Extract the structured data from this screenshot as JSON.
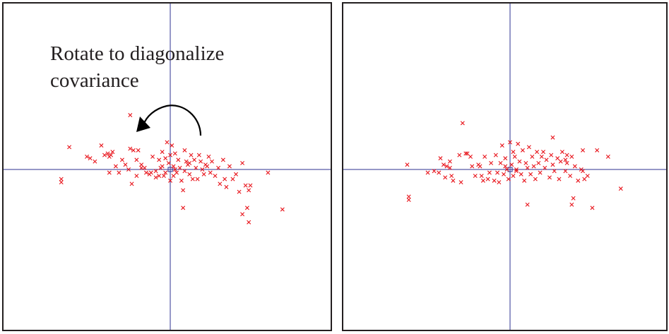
{
  "caption": {
    "line1": "Rotate to diagonalize",
    "line2": "covariance"
  },
  "colors": {
    "frame": "#231f20",
    "axis": "#2e3192",
    "marker": "#e8141b",
    "arrow": "#000000"
  },
  "chart_data": [
    {
      "type": "scatter",
      "panel": "left",
      "marker": "x",
      "xlim": [
        -10,
        10
      ],
      "ylim": [
        -10,
        10
      ],
      "grid": false,
      "points": [
        [
          -2.5,
          3.4
        ],
        [
          -6.3,
          1.4
        ],
        [
          -6.8,
          -0.6
        ],
        [
          -6.8,
          -0.8
        ],
        [
          -5.2,
          0.8
        ],
        [
          -5.0,
          0.7
        ],
        [
          -4.7,
          0.5
        ],
        [
          -4.3,
          1.5
        ],
        [
          -4.1,
          0.9
        ],
        [
          -3.9,
          1.0
        ],
        [
          -3.8,
          0.8
        ],
        [
          -3.7,
          0.9
        ],
        [
          -3.6,
          1.1
        ],
        [
          -3.4,
          0.2
        ],
        [
          -3.8,
          -0.2
        ],
        [
          -3.2,
          -0.2
        ],
        [
          -3.0,
          0.6
        ],
        [
          -2.8,
          0.3
        ],
        [
          -2.5,
          1.3
        ],
        [
          -2.3,
          1.2
        ],
        [
          -2.4,
          -0.9
        ],
        [
          -2.1,
          -0.4
        ],
        [
          -2.1,
          0.6
        ],
        [
          -2.0,
          1.2
        ],
        [
          -1.8,
          0.3
        ],
        [
          -1.6,
          0.1
        ],
        [
          -1.5,
          -0.2
        ],
        [
          -1.3,
          -0.3
        ],
        [
          -1.2,
          -0.2
        ],
        [
          -1.1,
          0.8
        ],
        [
          -0.9,
          -0.5
        ],
        [
          -0.9,
          -0.1
        ],
        [
          -0.7,
          0.6
        ],
        [
          -0.7,
          -0.4
        ],
        [
          -0.6,
          0.1
        ],
        [
          -0.5,
          1.1
        ],
        [
          -0.4,
          -0.4
        ],
        [
          -0.3,
          0.7
        ],
        [
          -0.3,
          -0.2
        ],
        [
          -0.2,
          1.7
        ],
        [
          -0.1,
          0.4
        ],
        [
          0.0,
          0.9
        ],
        [
          0.0,
          -0.7
        ],
        [
          0.1,
          1.5
        ],
        [
          0.2,
          0.2
        ],
        [
          0.2,
          -0.4
        ],
        [
          0.3,
          1.0
        ],
        [
          0.4,
          -0.2
        ],
        [
          0.5,
          0.6
        ],
        [
          0.6,
          0.1
        ],
        [
          0.7,
          -0.7
        ],
        [
          0.8,
          -1.3
        ],
        [
          0.9,
          1.2
        ],
        [
          0.9,
          -0.1
        ],
        [
          1.0,
          0.5
        ],
        [
          1.1,
          0.3
        ],
        [
          1.2,
          -0.3
        ],
        [
          1.3,
          0.9
        ],
        [
          1.4,
          -0.6
        ],
        [
          1.5,
          0.6
        ],
        [
          1.6,
          0.1
        ],
        [
          1.7,
          -0.6
        ],
        [
          1.8,
          0.9
        ],
        [
          1.9,
          0.5
        ],
        [
          2.0,
          0.0
        ],
        [
          2.1,
          -0.3
        ],
        [
          2.2,
          0.3
        ],
        [
          2.4,
          0.8
        ],
        [
          2.5,
          -0.2
        ],
        [
          2.6,
          0.5
        ],
        [
          2.8,
          -0.4
        ],
        [
          3.0,
          0.1
        ],
        [
          3.1,
          -0.9
        ],
        [
          3.3,
          0.6
        ],
        [
          3.4,
          -0.6
        ],
        [
          3.5,
          -1.1
        ],
        [
          3.7,
          0.2
        ],
        [
          3.9,
          -0.6
        ],
        [
          4.1,
          -0.3
        ],
        [
          4.3,
          -1.4
        ],
        [
          4.5,
          0.4
        ],
        [
          4.7,
          -1.0
        ],
        [
          4.9,
          -1.3
        ],
        [
          5.0,
          -1.0
        ],
        [
          4.5,
          -2.8
        ],
        [
          4.8,
          -2.4
        ],
        [
          0.8,
          -2.4
        ],
        [
          4.9,
          -3.3
        ],
        [
          6.1,
          -0.2
        ],
        [
          7.0,
          -2.5
        ],
        [
          -1.8,
          0.1
        ],
        [
          -0.5,
          0.2
        ],
        [
          0.3,
          0.0
        ],
        [
          1.2,
          0.4
        ],
        [
          2.3,
          0.2
        ],
        [
          -2.6,
          0.0
        ]
      ]
    },
    {
      "type": "scatter",
      "panel": "right",
      "marker": "x",
      "xlim": [
        -10,
        10
      ],
      "ylim": [
        -10,
        10
      ],
      "grid": false,
      "points": [
        [
          -3.0,
          2.9
        ],
        [
          -6.5,
          0.3
        ],
        [
          -6.4,
          -1.7
        ],
        [
          -6.4,
          -1.9
        ],
        [
          -5.2,
          -0.2
        ],
        [
          -4.8,
          -0.1
        ],
        [
          -4.5,
          -0.2
        ],
        [
          -4.4,
          0.7
        ],
        [
          -4.2,
          0.3
        ],
        [
          -4.1,
          -0.5
        ],
        [
          -4.0,
          0.2
        ],
        [
          -3.8,
          0.1
        ],
        [
          -3.8,
          0.5
        ],
        [
          -3.7,
          -0.4
        ],
        [
          -3.6,
          -0.7
        ],
        [
          -3.2,
          0.9
        ],
        [
          -3.1,
          -0.8
        ],
        [
          -2.8,
          1.0
        ],
        [
          -2.7,
          1.0
        ],
        [
          -2.5,
          0.8
        ],
        [
          -2.4,
          0.2
        ],
        [
          -2.2,
          -0.4
        ],
        [
          -2.0,
          0.3
        ],
        [
          -1.8,
          -0.4
        ],
        [
          -1.7,
          -0.7
        ],
        [
          -1.6,
          0.8
        ],
        [
          -1.4,
          -0.6
        ],
        [
          -1.3,
          -0.2
        ],
        [
          -1.2,
          0.4
        ],
        [
          -1.0,
          -0.7
        ],
        [
          -0.9,
          0.9
        ],
        [
          -0.8,
          -0.2
        ],
        [
          -0.7,
          -0.8
        ],
        [
          -0.6,
          0.4
        ],
        [
          -0.5,
          1.5
        ],
        [
          -0.4,
          -0.3
        ],
        [
          -0.3,
          0.7
        ],
        [
          -0.2,
          0.0
        ],
        [
          -0.1,
          -0.6
        ],
        [
          0.0,
          1.7
        ],
        [
          0.1,
          0.3
        ],
        [
          0.2,
          1.1
        ],
        [
          0.2,
          -0.4
        ],
        [
          0.3,
          0.8
        ],
        [
          0.4,
          -0.1
        ],
        [
          0.5,
          1.6
        ],
        [
          0.6,
          0.5
        ],
        [
          0.7,
          -0.3
        ],
        [
          0.8,
          1.2
        ],
        [
          0.9,
          -0.7
        ],
        [
          1.0,
          0.4
        ],
        [
          1.1,
          0.1
        ],
        [
          1.2,
          1.4
        ],
        [
          1.3,
          -0.3
        ],
        [
          1.4,
          0.8
        ],
        [
          1.5,
          0.2
        ],
        [
          1.6,
          -0.6
        ],
        [
          1.7,
          1.1
        ],
        [
          1.8,
          0.4
        ],
        [
          1.9,
          -0.2
        ],
        [
          2.0,
          0.8
        ],
        [
          2.1,
          1.1
        ],
        [
          2.2,
          0.1
        ],
        [
          2.3,
          0.6
        ],
        [
          2.5,
          -0.5
        ],
        [
          2.6,
          0.9
        ],
        [
          2.7,
          0.3
        ],
        [
          2.8,
          -0.1
        ],
        [
          3.0,
          0.7
        ],
        [
          3.1,
          -0.6
        ],
        [
          3.2,
          0.5
        ],
        [
          3.3,
          1.1
        ],
        [
          3.5,
          -0.1
        ],
        [
          3.6,
          0.4
        ],
        [
          3.8,
          -0.4
        ],
        [
          3.9,
          0.8
        ],
        [
          4.1,
          0.2
        ],
        [
          4.3,
          -0.7
        ],
        [
          2.7,
          2.0
        ],
        [
          4.6,
          -0.1
        ],
        [
          4.5,
          0.0
        ],
        [
          3.6,
          0.9
        ],
        [
          3.5,
          0.6
        ],
        [
          4.6,
          1.2
        ],
        [
          4.9,
          -0.4
        ],
        [
          4.7,
          -0.6
        ],
        [
          1.1,
          -2.2
        ],
        [
          3.9,
          -2.2
        ],
        [
          5.2,
          -2.4
        ],
        [
          6.2,
          0.8
        ],
        [
          5.5,
          1.2
        ],
        [
          7.0,
          -1.2
        ],
        [
          4.0,
          -1.8
        ],
        [
          -1.9,
          0.2
        ],
        [
          -0.3,
          0.2
        ],
        [
          0.4,
          0.0
        ]
      ]
    }
  ]
}
